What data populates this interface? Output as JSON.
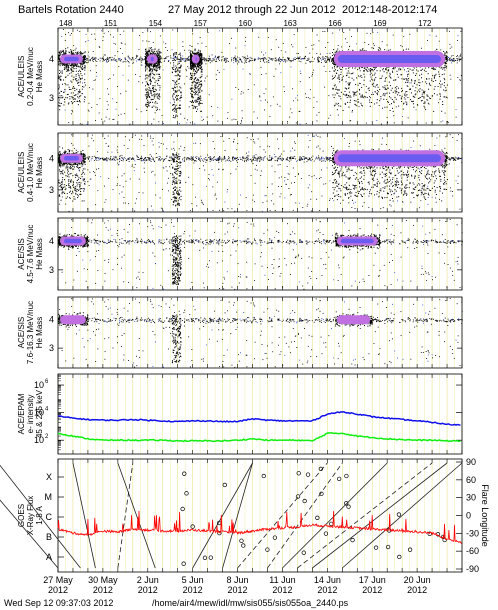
{
  "header": {
    "title": "Bartels Rotation 2440",
    "date_range": "27 May 2012 through 22 Jun 2012",
    "doy_range": "2012:148-2012:174"
  },
  "footer": {
    "timestamp": "Wed Sep 12 09:37:03 2012",
    "path": "/home/air4/mew/idl/mw/sis055/sis055oa_2440.ps"
  },
  "chart_data": [
    {
      "type": "scatter",
      "panel": "ACE/ULEIS 0.2-0.4 MeV/nuc",
      "ylabel_lines": [
        "ACE/ULEIS",
        "0.2-0.4 MeV/nuc",
        "He Mass"
      ],
      "y_ticks": [
        "4",
        "3"
      ],
      "ylim": [
        2.3,
        4.8
      ],
      "x_ticks_doy": [
        "148",
        "151",
        "154",
        "157",
        "160",
        "163",
        "166",
        "169",
        "172"
      ],
      "xlim_days": [
        0,
        27
      ],
      "clusters": [
        {
          "day_start": 0.0,
          "day_end": 1.8,
          "density": "high"
        },
        {
          "day_start": 5.8,
          "day_end": 6.8,
          "density": "high"
        },
        {
          "day_start": 8.8,
          "day_end": 9.6,
          "density": "high"
        },
        {
          "day_start": 18.3,
          "day_end": 26.0,
          "density": "very high"
        }
      ]
    },
    {
      "type": "scatter",
      "panel": "ACE/ULEIS 0.4-1.0 MeV/nuc",
      "ylabel_lines": [
        "ACE/ULEIS",
        "0.4-1.0 MeV/nuc",
        "He Mass"
      ],
      "y_ticks": [
        "4",
        "3"
      ],
      "ylim": [
        2.3,
        4.8
      ],
      "clusters": [
        {
          "day_start": 0.0,
          "day_end": 1.8,
          "density": "high"
        },
        {
          "day_start": 18.3,
          "day_end": 26.0,
          "density": "very high"
        }
      ]
    },
    {
      "type": "scatter",
      "panel": "ACE/SIS 4.5-7.6 MeV/nuc",
      "ylabel_lines": [
        "ACE/SIS",
        "4.5-7.6 MeV/nuc",
        "He Mass"
      ],
      "y_ticks": [
        "4",
        "3"
      ],
      "ylim": [
        2.3,
        4.8
      ],
      "clusters": [
        {
          "day_start": 0.0,
          "day_end": 2.0,
          "density": "high"
        },
        {
          "day_start": 18.5,
          "day_end": 21.5,
          "density": "high"
        }
      ]
    },
    {
      "type": "scatter",
      "panel": "ACE/SIS 7.6-16.3 MeV/nuc",
      "ylabel_lines": [
        "ACE/SIS",
        "7.6-16.3 MeV/nuc",
        "He Mass"
      ],
      "y_ticks": [
        "4",
        "3"
      ],
      "ylim": [
        2.3,
        4.8
      ],
      "clusters": [
        {
          "day_start": 0.0,
          "day_end": 2.0,
          "density": "medium"
        },
        {
          "day_start": 18.5,
          "day_end": 21.0,
          "density": "medium"
        }
      ]
    },
    {
      "type": "line",
      "panel": "ACE/EPAM e- intensity",
      "ylabel_lines": [
        "ACE/EPAM",
        "e- intensity",
        "45 & 235 keV"
      ],
      "y_ticks": [
        "10^6",
        "10^4",
        "10^2"
      ],
      "y_scale": "log",
      "ylim_log10": [
        1.0,
        6.8
      ],
      "series": [
        {
          "color": "#1010ee",
          "x_days": [
            0,
            1,
            2,
            3,
            4,
            5,
            6,
            7,
            8,
            9,
            10,
            11,
            12,
            13,
            14,
            15,
            16,
            17,
            18,
            19,
            20,
            21,
            22,
            23,
            24,
            25,
            26,
            27
          ],
          "log10_values": [
            3.75,
            3.6,
            3.5,
            3.45,
            3.45,
            3.5,
            3.45,
            3.4,
            3.35,
            3.4,
            3.4,
            3.35,
            3.35,
            3.55,
            3.45,
            3.4,
            3.4,
            3.4,
            3.9,
            4.05,
            3.9,
            3.7,
            3.6,
            3.5,
            3.4,
            3.3,
            3.15,
            3.1
          ]
        },
        {
          "color": "#10ee10",
          "x_days": [
            0,
            1,
            2,
            3,
            4,
            5,
            6,
            7,
            8,
            9,
            10,
            11,
            12,
            13,
            14,
            15,
            16,
            17,
            18,
            19,
            20,
            21,
            22,
            23,
            24,
            25,
            26,
            27
          ],
          "log10_values": [
            2.5,
            2.3,
            2.1,
            2.0,
            2.0,
            2.0,
            2.0,
            2.0,
            1.95,
            1.95,
            1.95,
            1.95,
            2.0,
            2.1,
            2.0,
            2.0,
            2.0,
            1.95,
            2.5,
            2.5,
            2.3,
            2.2,
            2.1,
            2.05,
            2.0,
            2.0,
            1.95,
            1.95
          ]
        }
      ]
    },
    {
      "type": "line",
      "panel": "GOES X-Ray Flux & Flare Longitude",
      "ylabel_lines": [
        "GOES",
        "X-Ray Flux",
        "1-8 A"
      ],
      "y_ticks_left": [
        "X",
        "M",
        "C",
        "B",
        "A"
      ],
      "y_ticks_right": [
        "90",
        "60",
        "30",
        "0",
        "-30",
        "-60",
        "-90"
      ],
      "right_ylabel": "Flare Longitude",
      "xray_series": {
        "color": "#ff0000",
        "x_days": [
          0,
          1,
          2,
          3,
          4,
          5,
          6,
          7,
          8,
          9,
          10,
          11,
          12,
          13,
          14,
          15,
          16,
          17,
          18,
          19,
          20,
          21,
          22,
          23,
          24,
          25,
          26,
          27
        ],
        "class_level": [
          1.4,
          1.2,
          1.1,
          1.3,
          1.25,
          1.4,
          1.35,
          1.3,
          1.3,
          1.35,
          1.3,
          1.25,
          1.2,
          1.3,
          1.4,
          1.45,
          1.5,
          1.6,
          1.55,
          1.5,
          1.45,
          1.4,
          1.35,
          1.3,
          1.25,
          1.2,
          0.9,
          0.7
        ]
      }
    }
  ],
  "x_axis": {
    "date_labels": [
      "27 May",
      "30 May",
      "2 Jun",
      "5 Jun",
      "8 Jun",
      "11 Jun",
      "14 Jun",
      "17 Jun",
      "20 Jun"
    ],
    "year_label": "2012"
  }
}
